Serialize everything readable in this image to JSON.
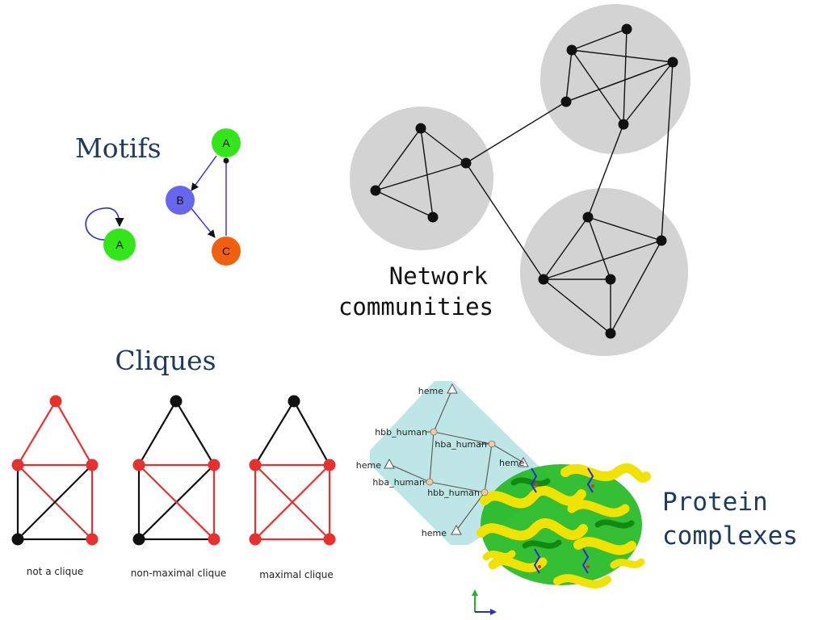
{
  "colors": {
    "heading": "#1f3a5f",
    "community_fill": "#d3d3d3",
    "clique_red": "#e8302f",
    "motif_green": "#33e619",
    "motif_blue": "#6666ee",
    "motif_orange": "#f06010",
    "complex_teal": "#bfe6e6",
    "helix_yellow": "#f2e200",
    "helix_green": "#1fb81f"
  },
  "motifs": {
    "title": "Motifs",
    "nodes": {
      "a1": "A",
      "a2": "A",
      "b": "B",
      "c": "C"
    }
  },
  "communities": {
    "title_line1": "Network",
    "title_line2": "communities"
  },
  "cliques": {
    "title": "Cliques",
    "captions": [
      "not a clique",
      "non-maximal clique",
      "maximal clique"
    ]
  },
  "protein": {
    "title_line1": "Protein",
    "title_line2": "complexes",
    "labels": {
      "heme_top": "heme",
      "hbb1": "hbb_human",
      "hba1": "hba_human",
      "heme_left": "heme",
      "hba2": "hba_human",
      "hbb2": "hbb_human",
      "heme_bottom": "heme",
      "heme_right": "heme"
    }
  }
}
